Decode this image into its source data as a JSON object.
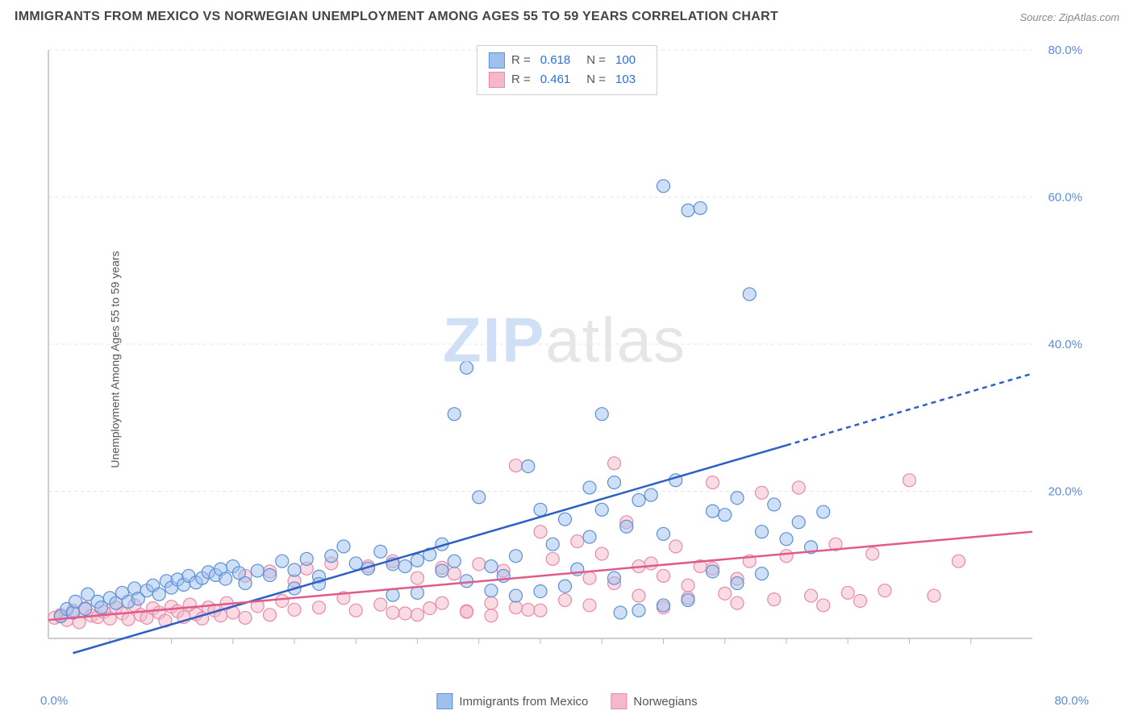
{
  "title": "IMMIGRANTS FROM MEXICO VS NORWEGIAN UNEMPLOYMENT AMONG AGES 55 TO 59 YEARS CORRELATION CHART",
  "source": "Source: ZipAtlas.com",
  "ylabel": "Unemployment Among Ages 55 to 59 years",
  "watermark_a": "ZIP",
  "watermark_b": "atlas",
  "chart": {
    "type": "scatter",
    "background_color": "#ffffff",
    "grid_color": "#e5e5e5",
    "axis_color": "#bdbdbd",
    "tick_label_color": "#5b8dd8",
    "xlim": [
      0,
      80
    ],
    "ylim": [
      0,
      80
    ],
    "xtick_step": 5,
    "ytick_step": 20,
    "xtick_labels": {
      "0": "0.0%",
      "80": "80.0%"
    },
    "ytick_labels": {
      "20": "20.0%",
      "40": "40.0%",
      "60": "60.0%",
      "80": "80.0%"
    },
    "marker_radius": 8,
    "marker_opacity": 0.5,
    "series": [
      {
        "name": "Immigrants from Mexico",
        "color_fill": "#9fc0ec",
        "color_stroke": "#5a91d6",
        "line_color": "#2d5fc4",
        "line_width": 2.5,
        "R": "0.618",
        "N": "100",
        "trend": {
          "x1": 2,
          "y1": -2,
          "x2": 80,
          "y2": 36,
          "solid_until_x": 60
        },
        "points": [
          [
            1,
            3
          ],
          [
            1.5,
            4
          ],
          [
            2,
            3.5
          ],
          [
            2.2,
            5
          ],
          [
            3,
            4
          ],
          [
            3.2,
            6
          ],
          [
            4,
            5
          ],
          [
            4.3,
            4.2
          ],
          [
            5,
            5.5
          ],
          [
            5.5,
            4.8
          ],
          [
            6,
            6.2
          ],
          [
            6.5,
            5
          ],
          [
            7,
            6.8
          ],
          [
            7.3,
            5.4
          ],
          [
            8,
            6.5
          ],
          [
            8.5,
            7.2
          ],
          [
            9,
            6
          ],
          [
            9.6,
            7.8
          ],
          [
            10,
            6.9
          ],
          [
            10.5,
            8
          ],
          [
            11,
            7.3
          ],
          [
            11.4,
            8.5
          ],
          [
            12,
            7.6
          ],
          [
            12.5,
            8.2
          ],
          [
            13,
            9
          ],
          [
            13.6,
            8.6
          ],
          [
            14,
            9.4
          ],
          [
            14.4,
            8.1
          ],
          [
            15,
            9.8
          ],
          [
            15.5,
            8.9
          ],
          [
            16,
            7.5
          ],
          [
            17,
            9.2
          ],
          [
            18,
            8.6
          ],
          [
            19,
            10.5
          ],
          [
            20,
            9.3
          ],
          [
            21,
            10.8
          ],
          [
            22,
            8.4
          ],
          [
            23,
            11.2
          ],
          [
            24,
            12.5
          ],
          [
            25,
            10.2
          ],
          [
            26,
            9.5
          ],
          [
            27,
            11.8
          ],
          [
            28,
            10.1
          ],
          [
            29,
            9.8
          ],
          [
            30,
            10.6
          ],
          [
            31,
            11.4
          ],
          [
            32,
            9.2
          ],
          [
            33,
            30.5
          ],
          [
            33,
            10.5
          ],
          [
            34,
            36.8
          ],
          [
            35,
            19.2
          ],
          [
            36,
            9.8
          ],
          [
            37,
            8.5
          ],
          [
            38,
            11.2
          ],
          [
            39,
            23.4
          ],
          [
            40,
            17.5
          ],
          [
            41,
            12.8
          ],
          [
            42,
            16.2
          ],
          [
            43,
            9.4
          ],
          [
            44,
            13.8
          ],
          [
            45,
            30.5
          ],
          [
            45,
            17.5
          ],
          [
            46,
            21.2
          ],
          [
            46.5,
            3.5
          ],
          [
            47,
            15.2
          ],
          [
            48,
            18.8
          ],
          [
            49,
            19.5
          ],
          [
            50,
            14.2
          ],
          [
            50,
            61.5
          ],
          [
            51,
            21.5
          ],
          [
            52,
            58.2
          ],
          [
            53,
            58.5
          ],
          [
            54,
            17.3
          ],
          [
            55,
            16.8
          ],
          [
            56,
            19.1
          ],
          [
            57,
            46.8
          ],
          [
            58,
            14.5
          ],
          [
            59,
            18.2
          ],
          [
            60,
            13.5
          ],
          [
            61,
            15.8
          ],
          [
            62,
            12.4
          ],
          [
            63,
            17.2
          ],
          [
            48,
            3.8
          ],
          [
            50,
            4.5
          ],
          [
            52,
            5.2
          ],
          [
            38,
            5.8
          ],
          [
            40,
            6.4
          ],
          [
            42,
            7.1
          ],
          [
            36,
            6.5
          ],
          [
            34,
            7.8
          ],
          [
            30,
            6.2
          ],
          [
            28,
            5.9
          ],
          [
            32,
            12.8
          ],
          [
            44,
            20.5
          ],
          [
            46,
            8.2
          ],
          [
            54,
            9.1
          ],
          [
            56,
            7.5
          ],
          [
            58,
            8.8
          ],
          [
            20,
            6.8
          ],
          [
            22,
            7.4
          ]
        ]
      },
      {
        "name": "Norwegians",
        "color_fill": "#f4b8ca",
        "color_stroke": "#e88aa8",
        "line_color": "#e05a8a",
        "line_width": 2.5,
        "R": "0.461",
        "N": "103",
        "trend": {
          "x1": 0,
          "y1": 2.5,
          "x2": 80,
          "y2": 14.5,
          "solid_until_x": 80
        },
        "points": [
          [
            0.5,
            2.8
          ],
          [
            1,
            3.2
          ],
          [
            1.5,
            2.5
          ],
          [
            2,
            3.8
          ],
          [
            2.5,
            2.2
          ],
          [
            3,
            4.1
          ],
          [
            3.5,
            3.1
          ],
          [
            4,
            2.9
          ],
          [
            4.5,
            3.6
          ],
          [
            5,
            2.7
          ],
          [
            5.5,
            4.2
          ],
          [
            6,
            3.4
          ],
          [
            6.5,
            2.6
          ],
          [
            7,
            4.5
          ],
          [
            7.5,
            3.2
          ],
          [
            8,
            2.8
          ],
          [
            8.5,
            4.1
          ],
          [
            9,
            3.5
          ],
          [
            9.5,
            2.4
          ],
          [
            10,
            4.3
          ],
          [
            10.5,
            3.7
          ],
          [
            11,
            2.9
          ],
          [
            11.5,
            4.6
          ],
          [
            12,
            3.3
          ],
          [
            12.5,
            2.7
          ],
          [
            13,
            4.2
          ],
          [
            13.5,
            3.8
          ],
          [
            14,
            3.1
          ],
          [
            14.5,
            4.8
          ],
          [
            15,
            3.5
          ],
          [
            16,
            2.8
          ],
          [
            17,
            4.4
          ],
          [
            18,
            3.2
          ],
          [
            19,
            5.1
          ],
          [
            20,
            3.9
          ],
          [
            21,
            9.5
          ],
          [
            22,
            4.2
          ],
          [
            23,
            10.2
          ],
          [
            24,
            5.5
          ],
          [
            25,
            3.8
          ],
          [
            26,
            9.8
          ],
          [
            27,
            4.6
          ],
          [
            28,
            10.5
          ],
          [
            29,
            3.4
          ],
          [
            30,
            8.2
          ],
          [
            31,
            4.1
          ],
          [
            32,
            9.6
          ],
          [
            33,
            8.8
          ],
          [
            34,
            3.7
          ],
          [
            35,
            10.1
          ],
          [
            36,
            4.8
          ],
          [
            37,
            9.2
          ],
          [
            38,
            23.5
          ],
          [
            39,
            3.9
          ],
          [
            40,
            14.5
          ],
          [
            41,
            10.8
          ],
          [
            42,
            5.2
          ],
          [
            43,
            13.2
          ],
          [
            44,
            4.5
          ],
          [
            45,
            11.5
          ],
          [
            46,
            23.8
          ],
          [
            47,
            15.8
          ],
          [
            48,
            5.8
          ],
          [
            49,
            10.2
          ],
          [
            50,
            4.2
          ],
          [
            51,
            12.5
          ],
          [
            52,
            5.5
          ],
          [
            53,
            9.8
          ],
          [
            54,
            21.2
          ],
          [
            55,
            6.1
          ],
          [
            56,
            4.8
          ],
          [
            57,
            10.5
          ],
          [
            58,
            19.8
          ],
          [
            59,
            5.3
          ],
          [
            60,
            11.2
          ],
          [
            61,
            20.5
          ],
          [
            62,
            5.8
          ],
          [
            63,
            4.5
          ],
          [
            64,
            12.8
          ],
          [
            65,
            6.2
          ],
          [
            66,
            5.1
          ],
          [
            67,
            11.5
          ],
          [
            68,
            6.5
          ],
          [
            70,
            21.5
          ],
          [
            72,
            5.8
          ],
          [
            74,
            10.5
          ],
          [
            16,
            8.5
          ],
          [
            18,
            9.1
          ],
          [
            20,
            7.8
          ],
          [
            44,
            8.2
          ],
          [
            46,
            7.5
          ],
          [
            48,
            9.8
          ],
          [
            50,
            8.5
          ],
          [
            52,
            7.2
          ],
          [
            54,
            9.5
          ],
          [
            56,
            8.1
          ],
          [
            28,
            3.5
          ],
          [
            30,
            3.2
          ],
          [
            32,
            4.8
          ],
          [
            34,
            3.6
          ],
          [
            36,
            3.1
          ],
          [
            38,
            4.2
          ],
          [
            40,
            3.8
          ]
        ]
      }
    ]
  },
  "bottom_legend": [
    {
      "label": "Immigrants from Mexico",
      "fill": "#9fc0ec",
      "stroke": "#5a91d6"
    },
    {
      "label": "Norwegians",
      "fill": "#f4b8ca",
      "stroke": "#e88aa8"
    }
  ]
}
